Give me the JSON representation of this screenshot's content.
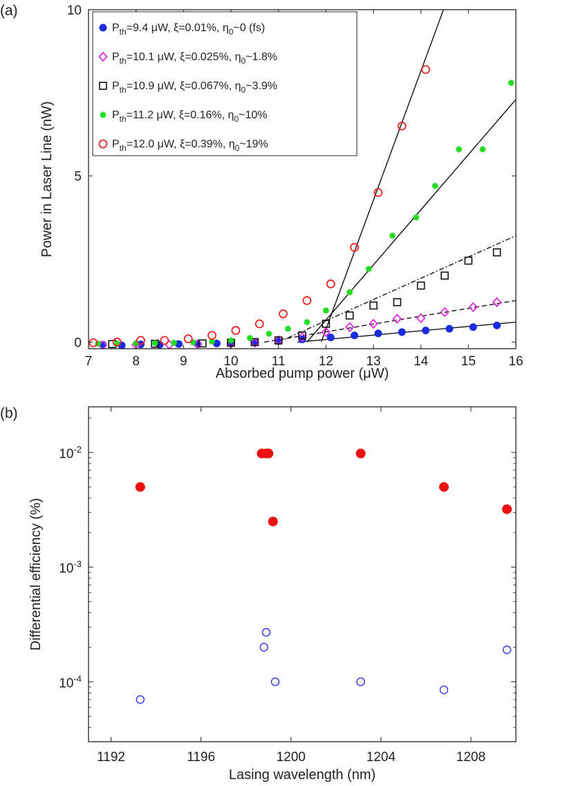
{
  "chart_data": [
    {
      "type": "scatter",
      "panel_label": "(a)",
      "xlabel": "Absorbed pump power (μW)",
      "ylabel": "Power in Laser Line (nW)",
      "xlim": [
        7,
        16
      ],
      "ylim": [
        -0.2,
        10
      ],
      "xticks": [
        7,
        8,
        9,
        10,
        11,
        12,
        13,
        14,
        15,
        16
      ],
      "xtick_labels": [
        "7",
        "8",
        "9",
        "10",
        "11",
        "12",
        "13",
        "14",
        "15",
        "16"
      ],
      "yticks": [
        0,
        5,
        10
      ],
      "ytick_labels": [
        "0",
        "5",
        "10"
      ],
      "legend_position": "top-right",
      "series": [
        {
          "name": "Pth=9.4 μW, ξ=0.01%, η0~0 (fs)",
          "legend": {
            "p": "P",
            "psub": "th",
            "mid": "=9.4 μW, ξ=0.01%, ",
            "eta": "η",
            "etasub": "0",
            "tail": "~0 (fs)"
          },
          "color": "#1a2be0",
          "marker": "filled-circle",
          "fit_style": "solid",
          "fit_line": {
            "x": [
              11.4,
              16.0
            ],
            "y": [
              0.0,
              0.6
            ]
          },
          "x": [
            7.3,
            7.7,
            8.1,
            8.5,
            8.9,
            9.3,
            9.7,
            10.0,
            10.5,
            11.0,
            11.5,
            12.1,
            12.6,
            13.1,
            13.6,
            14.1,
            14.6,
            15.1,
            15.6
          ],
          "y": [
            -0.08,
            -0.1,
            -0.07,
            -0.08,
            -0.06,
            -0.06,
            -0.04,
            -0.02,
            0.0,
            0.03,
            0.08,
            0.14,
            0.2,
            0.26,
            0.3,
            0.35,
            0.4,
            0.45,
            0.5
          ]
        },
        {
          "name": "Pth=10.1 μW, ξ=0.025%, η0~1.8%",
          "legend": {
            "p": "P",
            "psub": "th",
            "mid": "=10.1 μW, ξ=0.025%, ",
            "eta": "η",
            "etasub": "0",
            "tail": "~1.8%"
          },
          "color": "#e02be0",
          "marker": "open-diamond",
          "fit_style": "dashed",
          "fit_line": {
            "x": [
              10.7,
              16.0
            ],
            "y": [
              0.0,
              1.25
            ]
          },
          "x": [
            7.3,
            8.0,
            8.7,
            9.3,
            10.0,
            10.5,
            11.0,
            11.5,
            12.0,
            12.5,
            13.0,
            13.5,
            14.0,
            14.5,
            15.1,
            15.6
          ],
          "y": [
            -0.1,
            -0.08,
            -0.08,
            -0.06,
            -0.05,
            -0.02,
            0.05,
            0.15,
            0.3,
            0.45,
            0.55,
            0.7,
            0.72,
            0.9,
            1.05,
            1.2
          ]
        },
        {
          "name": "Pth=10.9 μW, ξ=0.067%, η0~3.9%",
          "legend": {
            "p": "P",
            "psub": "th",
            "mid": "=10.9 μW, ξ=0.067%, ",
            "eta": "η",
            "etasub": "0",
            "tail": "~3.9%"
          },
          "color": "#111111",
          "marker": "open-square",
          "fit_style": "dashdot",
          "fit_line": {
            "x": [
              11.0,
              16.0
            ],
            "y": [
              0.0,
              3.2
            ]
          },
          "x": [
            7.5,
            8.4,
            9.4,
            10.0,
            10.5,
            11.0,
            11.5,
            12.0,
            12.5,
            13.0,
            13.5,
            14.0,
            14.5,
            15.0,
            15.6
          ],
          "y": [
            -0.06,
            -0.05,
            -0.04,
            -0.02,
            0.0,
            0.05,
            0.2,
            0.55,
            0.8,
            1.1,
            1.2,
            1.7,
            2.0,
            2.45,
            2.7
          ]
        },
        {
          "name": "Pth=11.2 μW, ξ=0.16%, η0~10%",
          "legend": {
            "p": "P",
            "psub": "th",
            "mid": "=11.2 μW, ξ=0.16%, ",
            "eta": "η",
            "etasub": "0",
            "tail": "~10%"
          },
          "color": "#22dd22",
          "marker": "filled-star",
          "fit_style": "solid",
          "fit_line": {
            "x": [
              11.6,
              16.0
            ],
            "y": [
              0.0,
              7.3
            ]
          },
          "x": [
            7.2,
            7.6,
            8.0,
            8.4,
            8.8,
            9.2,
            9.6,
            10.0,
            10.4,
            10.8,
            11.2,
            11.6,
            12.0,
            12.5,
            12.9,
            13.4,
            13.9,
            14.3,
            14.8,
            15.3,
            15.9
          ],
          "y": [
            -0.05,
            -0.05,
            -0.04,
            -0.03,
            -0.02,
            -0.01,
            0.02,
            0.05,
            0.12,
            0.25,
            0.4,
            0.6,
            0.95,
            1.5,
            2.2,
            3.2,
            3.75,
            4.7,
            5.8,
            5.8,
            7.8
          ]
        },
        {
          "name": "Pth=12.0 μW, ξ=0.39%, η0~19%",
          "legend": {
            "p": "P",
            "psub": "th",
            "mid": "=12.0 μW, ξ=0.39%, ",
            "eta": "η",
            "etasub": "0",
            "tail": "~19%"
          },
          "color": "#ee2222",
          "marker": "open-circle",
          "fit_style": "solid",
          "fit_line": {
            "x": [
              11.9,
              14.5
            ],
            "y": [
              0.0,
              10.1
            ]
          },
          "x": [
            7.1,
            7.6,
            8.1,
            8.6,
            9.1,
            9.6,
            10.1,
            10.6,
            11.1,
            11.6,
            12.1,
            12.6,
            13.1,
            13.6,
            14.1
          ],
          "y": [
            -0.02,
            0.0,
            0.05,
            0.05,
            0.1,
            0.2,
            0.35,
            0.55,
            0.85,
            1.25,
            1.75,
            2.85,
            4.5,
            6.5,
            8.2
          ]
        }
      ]
    },
    {
      "type": "scatter",
      "panel_label": "(b)",
      "xlabel": "Lasing wavelength (nm)",
      "ylabel": "Differential efficiency (%)",
      "xlim": [
        1191,
        1210
      ],
      "ylim": [
        3e-05,
        0.025
      ],
      "yscale": "log",
      "xticks": [
        1192,
        1196,
        1200,
        1204,
        1208
      ],
      "xtick_labels": [
        "1192",
        "1196",
        "1200",
        "1204",
        "1208"
      ],
      "yticks": [
        0.0001,
        0.001,
        0.01
      ],
      "ytick_labels": [
        {
          "base": "10",
          "exp": "-4"
        },
        {
          "base": "10",
          "exp": "-3"
        },
        {
          "base": "10",
          "exp": "-2"
        }
      ],
      "series": [
        {
          "name": "filled",
          "color": "#ee1111",
          "marker": "filled-circle",
          "x": [
            1193.3,
            1198.7,
            1198.9,
            1199.0,
            1199.2,
            1203.1,
            1206.8,
            1209.6
          ],
          "y": [
            0.005,
            0.0098,
            0.0098,
            0.0098,
            0.0025,
            0.0098,
            0.005,
            0.0032
          ]
        },
        {
          "name": "open",
          "color": "#3333ee",
          "marker": "open-circle",
          "x": [
            1193.3,
            1198.8,
            1198.9,
            1199.3,
            1203.1,
            1206.8,
            1209.6
          ],
          "y": [
            7e-05,
            0.0002,
            0.00027,
            0.0001,
            0.0001,
            8.5e-05,
            0.00019
          ]
        }
      ]
    }
  ]
}
